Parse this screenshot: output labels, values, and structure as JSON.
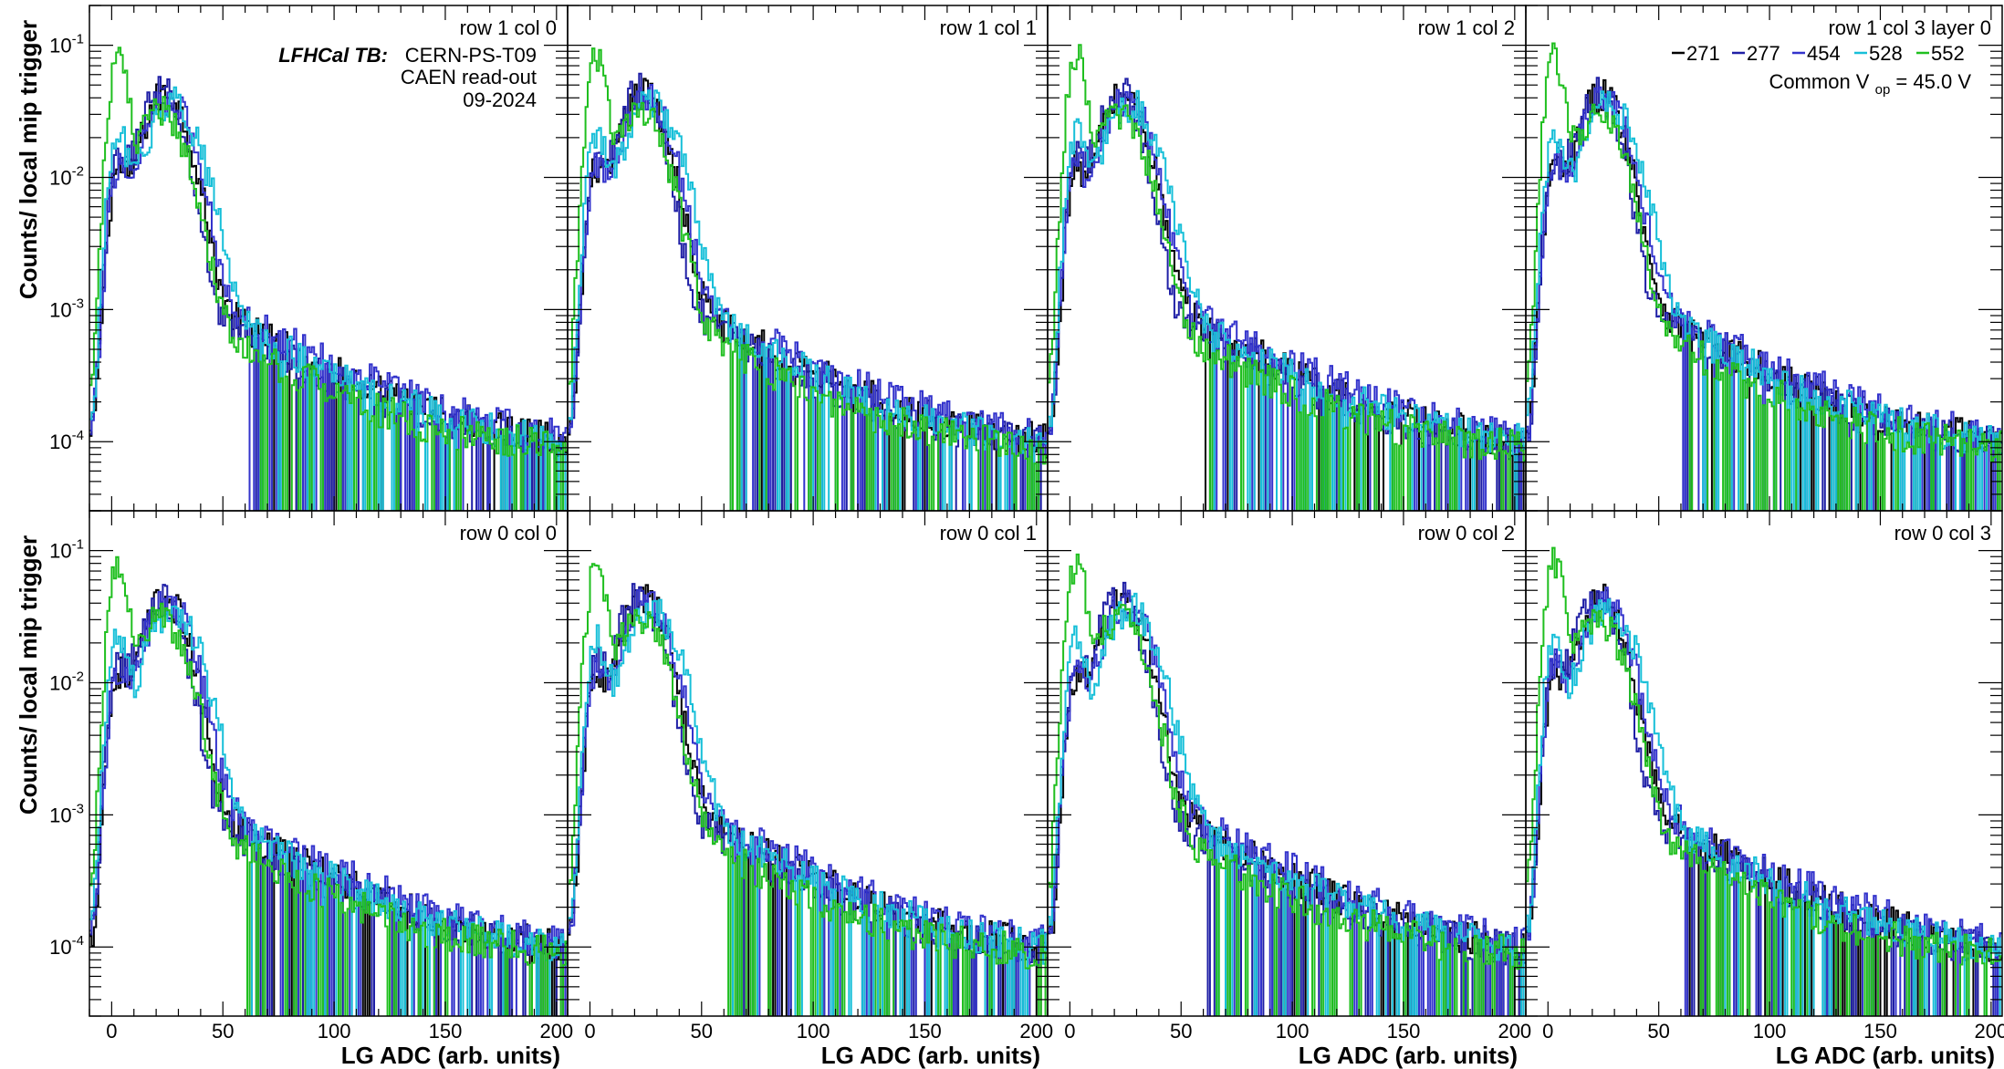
{
  "chart_data": {
    "type": "line",
    "layout": "grid 2 rows x 4 columns",
    "yscale": "log",
    "xlim": [
      -10,
      205
    ],
    "ylim": [
      3e-05,
      0.2
    ],
    "grid": false,
    "ylabel": "Counts/ local mip trigger",
    "xlabel": "LG ADC (arb. units)",
    "x_ticks": [
      "0",
      "50",
      "100",
      "150",
      "200"
    ],
    "y_ticks": [
      {
        "base": "10",
        "exp": "-1",
        "value": 0.1
      },
      {
        "base": "10",
        "exp": "-2",
        "value": 0.01
      },
      {
        "base": "10",
        "exp": "-3",
        "value": 0.001
      },
      {
        "base": "10",
        "exp": "-4",
        "value": 0.0001
      }
    ],
    "annotations": {
      "experiment": "LFHCal TB:",
      "beam": "CERN-PS-T09",
      "readout": "CAEN read-out",
      "date": "09-2024",
      "voltage_prefix": "Common V",
      "voltage_sub": "op",
      "voltage_value": " = 45.0 V"
    },
    "legend": [
      {
        "name": "271",
        "color": "#000000"
      },
      {
        "name": "277",
        "color": "#1f1fa6"
      },
      {
        "name": "454",
        "color": "#3333cc"
      },
      {
        "name": "528",
        "color": "#17bfd8"
      },
      {
        "name": "552",
        "color": "#1fbf1f"
      }
    ],
    "series_params": {
      "271": {
        "mip": 24,
        "w": 8.5,
        "amp": 0.042,
        "ped": 0.01,
        "tail": 0.0016,
        "slope": 0.024
      },
      "277": {
        "mip": 22,
        "w": 8.0,
        "amp": 0.044,
        "ped": 0.012,
        "tail": 0.0015,
        "slope": 0.025
      },
      "454": {
        "mip": 25,
        "w": 9.0,
        "amp": 0.04,
        "ped": 0.011,
        "tail": 0.0017,
        "slope": 0.023
      },
      "528": {
        "mip": 27,
        "w": 10.0,
        "amp": 0.035,
        "ped": 0.02,
        "tail": 0.0014,
        "slope": 0.024
      },
      "552": {
        "mip": 22,
        "w": 9.5,
        "amp": 0.03,
        "ped": 0.08,
        "tail": 0.0012,
        "slope": 0.026
      }
    },
    "panels": [
      {
        "label": "row 1 col 0"
      },
      {
        "label": "row 1 col 1"
      },
      {
        "label": "row 1 col 2"
      },
      {
        "label": "row 1 col 3 layer 0"
      },
      {
        "label": "row 0 col 0"
      },
      {
        "label": "row 0 col 1"
      },
      {
        "label": "row 0 col 2"
      },
      {
        "label": "row 0 col 3"
      }
    ]
  }
}
